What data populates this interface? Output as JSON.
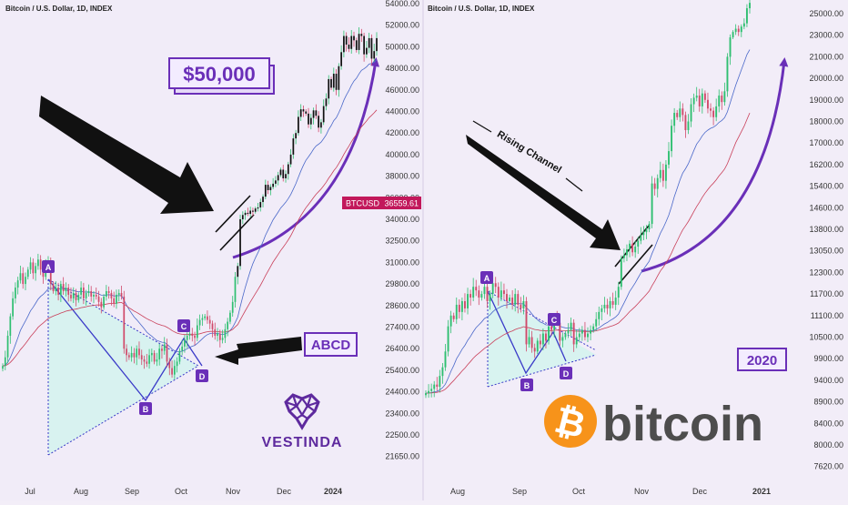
{
  "chart_data": [
    {
      "type": "candlestick",
      "header": "Bitcoin / U.S. Dollar, 1D, INDEX",
      "x_ticks": [
        "Jul",
        "Aug",
        "Sep",
        "Oct",
        "Nov",
        "Dec",
        "2024"
      ],
      "y_ticks": [
        "54000.00",
        "52000.00",
        "50000.00",
        "48000.00",
        "46000.00",
        "44000.00",
        "42000.00",
        "40000.00",
        "38000.00",
        "36000.00",
        "34000.00",
        "32500.00",
        "31000.00",
        "29800.00",
        "28600.00",
        "27400.00",
        "26400.00",
        "25400.00",
        "24400.00",
        "23400.00",
        "22500.00",
        "21650.00"
      ],
      "price_tag": {
        "symbol": "BTCUSD",
        "value": "36559.61"
      },
      "pattern_points": [
        "A",
        "B",
        "C",
        "D"
      ],
      "callouts": [
        "$50,000",
        "ABCD"
      ],
      "brand": "VESTINDA",
      "series": [
        {
          "closes": [
            25600,
            26000,
            27000,
            28000,
            29000,
            29600,
            30000,
            30400,
            29800,
            30200,
            30600,
            31000,
            30400,
            30800,
            31200,
            30600,
            30200,
            30800,
            31100,
            29800,
            29400,
            29600,
            29200,
            29800,
            29400,
            29600,
            29200,
            29000,
            29300,
            28900,
            29200,
            29600,
            29000,
            29300,
            29400,
            29100,
            29200,
            29100,
            28800,
            28500,
            29100,
            29400,
            29300,
            29000,
            28700,
            29200,
            29300,
            29100,
            26400,
            26100,
            26000,
            26200,
            26000,
            26400,
            26100,
            25900,
            25800,
            25700,
            26100,
            26200,
            25800,
            25900,
            26400,
            26300,
            26600,
            25800,
            25500,
            25200,
            25600,
            25800,
            26300,
            26500,
            26800,
            27000,
            27100,
            27000,
            26900,
            27500,
            27800,
            27900,
            28000,
            27800,
            27600,
            27300,
            27000,
            27100,
            26800,
            26900,
            27300,
            27700,
            28200,
            28800,
            30200,
            30800,
            34000,
            34400,
            34600,
            34500,
            34800,
            34700,
            35000,
            35100,
            35600,
            36100,
            37200,
            36700,
            37000,
            37300,
            37600,
            38100,
            38600,
            37800,
            38200,
            39100,
            40000,
            41500,
            42000,
            43500,
            44200,
            44000,
            43800,
            42800,
            43400,
            44100,
            43600,
            42500,
            43000,
            44500,
            45200,
            47000,
            46200,
            47500,
            46000,
            48200,
            49500,
            51000,
            50200,
            49800,
            51000,
            50600,
            49700,
            51200,
            51000,
            49300,
            49900,
            50800,
            48900,
            49600,
            50800
          ]
        }
      ]
    },
    {
      "type": "candlestick",
      "header": "Bitcoin / U.S. Dollar, 1D, INDEX",
      "x_ticks": [
        "Aug",
        "Sep",
        "Oct",
        "Nov",
        "Dec",
        "2021"
      ],
      "y_ticks": [
        "25000.00",
        "23000.00",
        "21000.00",
        "20000.00",
        "19000.00",
        "18000.00",
        "17000.00",
        "16200.00",
        "15400.00",
        "14600.00",
        "13800.00",
        "13050.00",
        "12300.00",
        "11700.00",
        "11100.00",
        "10500.00",
        "9900.00",
        "9400.00",
        "8900.00",
        "8400.00",
        "8000.00",
        "7620.00"
      ],
      "annotation": "Rising Channel",
      "year_label": "2020",
      "pattern_points": [
        "A",
        "B",
        "C",
        "D"
      ],
      "brand": "bitcoin",
      "series": [
        {
          "closes": [
            9100,
            9150,
            9200,
            9300,
            9250,
            9500,
            9700,
            10100,
            10800,
            11100,
            11000,
            11400,
            11200,
            11500,
            11300,
            11700,
            11600,
            11900,
            11800,
            11600,
            11700,
            11900,
            11500,
            11700,
            12000,
            11900,
            11600,
            11800,
            11700,
            11500,
            11600,
            11400,
            11700,
            11400,
            11300,
            11500,
            10300,
            10500,
            10200,
            10100,
            10400,
            10300,
            10600,
            10400,
            10800,
            10700,
            11000,
            10900,
            10400,
            10500,
            10600,
            10700,
            10900,
            10300,
            10500,
            10600,
            10700,
            10500,
            10600,
            10700,
            10800,
            11000,
            11200,
            11300,
            11400,
            11300,
            11500,
            11400,
            11600,
            11900,
            12800,
            12900,
            13100,
            13300,
            13000,
            13200,
            13400,
            13600,
            13700,
            13800,
            14000,
            15500,
            15300,
            15700,
            16000,
            15600,
            16200,
            16700,
            17800,
            18400,
            18200,
            18600,
            18300,
            17600,
            18000,
            18800,
            19100,
            19200,
            18700,
            19300,
            19000,
            18600,
            18500,
            18200,
            18700,
            19200,
            18900,
            19400,
            21000,
            22800,
            23300,
            23600,
            23300,
            23800,
            24100,
            25500,
            26000
          ]
        }
      ]
    }
  ]
}
